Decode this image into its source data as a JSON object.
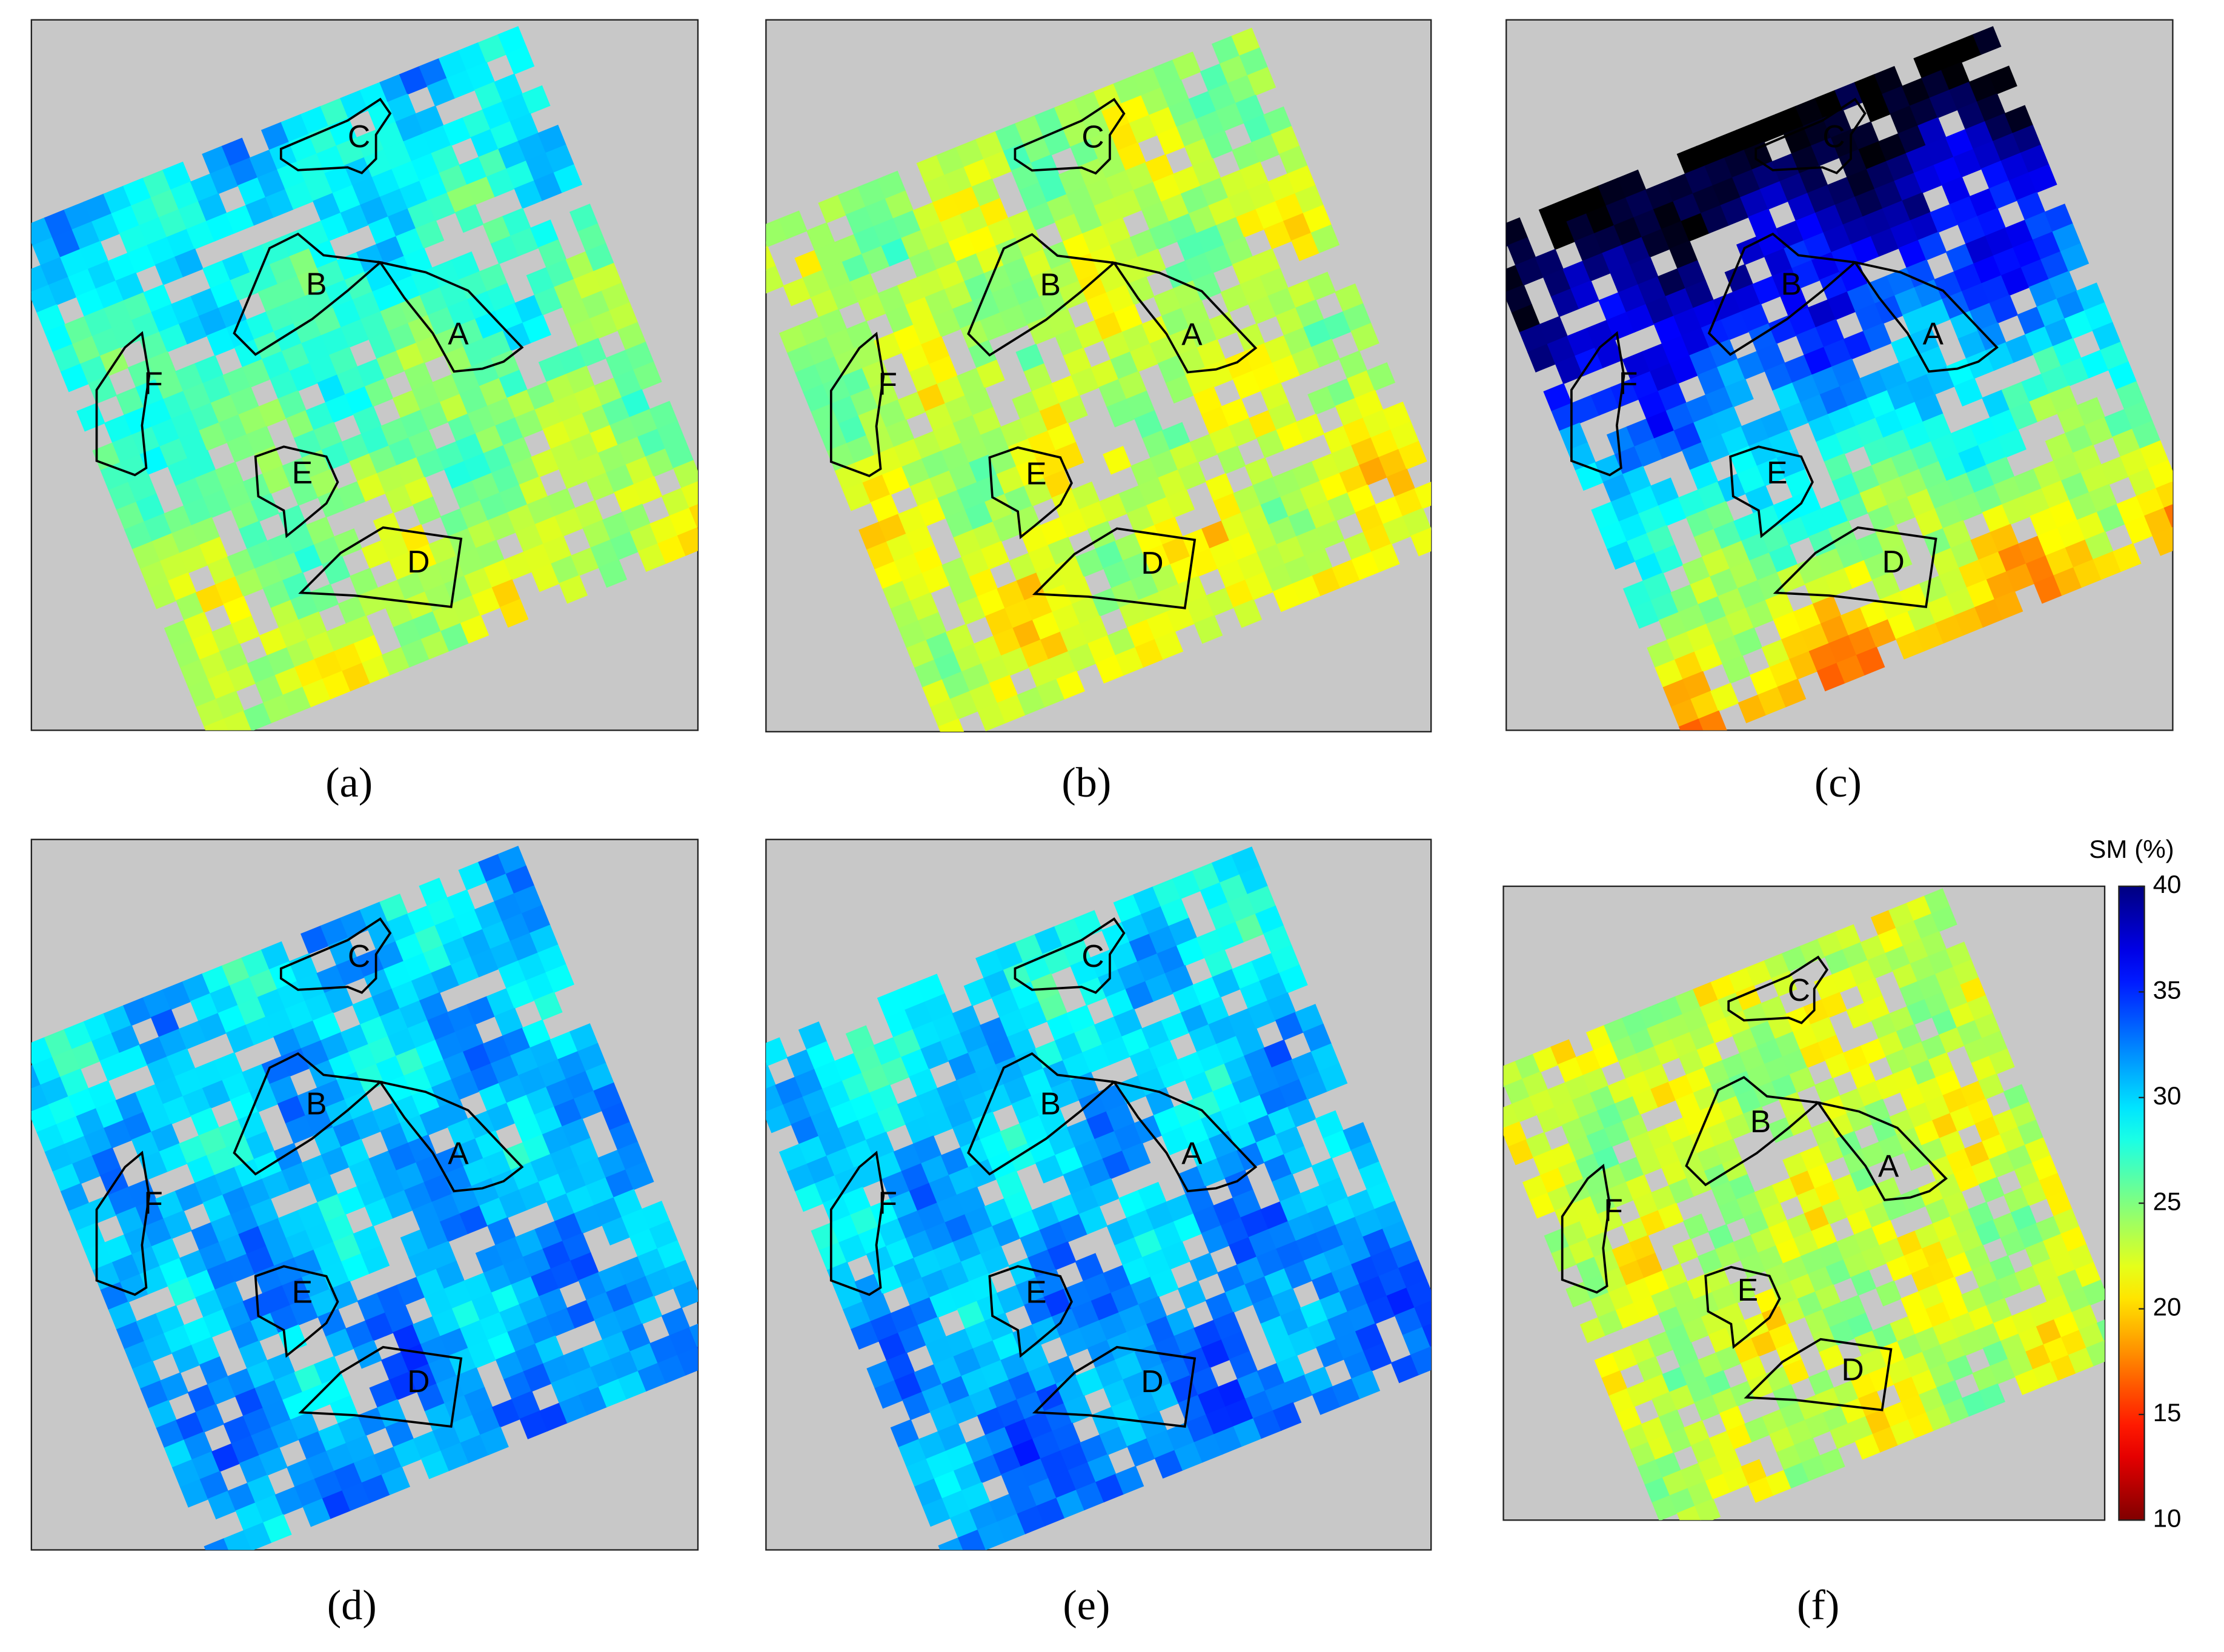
{
  "panels": [
    {
      "label": "(a)"
    },
    {
      "label": "(b)"
    },
    {
      "label": "(c)"
    },
    {
      "label": "(d)"
    },
    {
      "label": "(e)"
    },
    {
      "label": "(f)"
    }
  ],
  "field_labels": [
    "A",
    "B",
    "C",
    "D",
    "E",
    "F"
  ],
  "colorbar": {
    "title": "SM (%)",
    "lim": [
      10,
      40
    ],
    "ticks": [
      10,
      15,
      20,
      25,
      30,
      35,
      40
    ]
  }
}
